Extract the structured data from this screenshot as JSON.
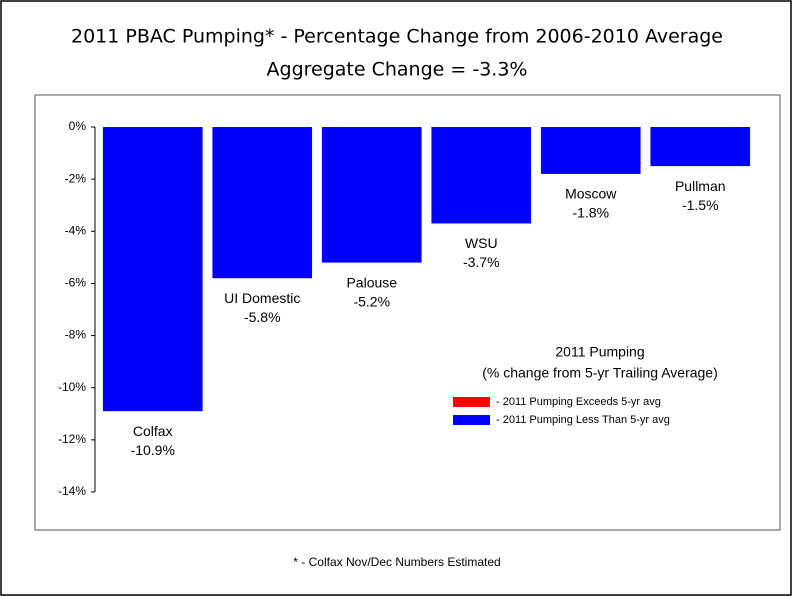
{
  "chart_data": {
    "type": "bar",
    "title": "2011 PBAC Pumping* - Percentage Change from 2006-2010 Average",
    "subtitle": "Aggregate Change = -3.3%",
    "footnote": "* - Colfax Nov/Dec Numbers Estimated",
    "categories": [
      "Colfax",
      "UI Domestic",
      "Palouse",
      "WSU",
      "Moscow",
      "Pullman"
    ],
    "series": [
      {
        "name": "- 2011 Pumping Less Than 5-yr avg",
        "color": "#0000ff",
        "values": [
          -10.9,
          -5.8,
          -5.2,
          -3.7,
          -1.8,
          -1.5
        ],
        "value_labels": [
          "-10.9%",
          "-5.8%",
          "-5.2%",
          "-3.7%",
          "-1.8%",
          "-1.5%"
        ]
      }
    ],
    "legend_title": [
      "2011 Pumping",
      "(% change from 5-yr Trailing Average)"
    ],
    "legend": [
      {
        "name": "- 2011 Pumping Exceeds 5-yr avg",
        "color": "#ff0000"
      },
      {
        "name": "- 2011 Pumping Less Than 5-yr avg",
        "color": "#0000ff"
      }
    ],
    "ylim": [
      -14,
      0
    ],
    "yticks": [
      {
        "value": 0,
        "label": "0%"
      },
      {
        "value": -2,
        "label": "-2%"
      },
      {
        "value": -4,
        "label": "-4%"
      },
      {
        "value": -6,
        "label": "-6%"
      },
      {
        "value": -8,
        "label": "-8%"
      },
      {
        "value": -10,
        "label": "-10%"
      },
      {
        "value": -12,
        "label": "-12%"
      },
      {
        "value": -14,
        "label": "-14%"
      }
    ],
    "grid": false
  }
}
